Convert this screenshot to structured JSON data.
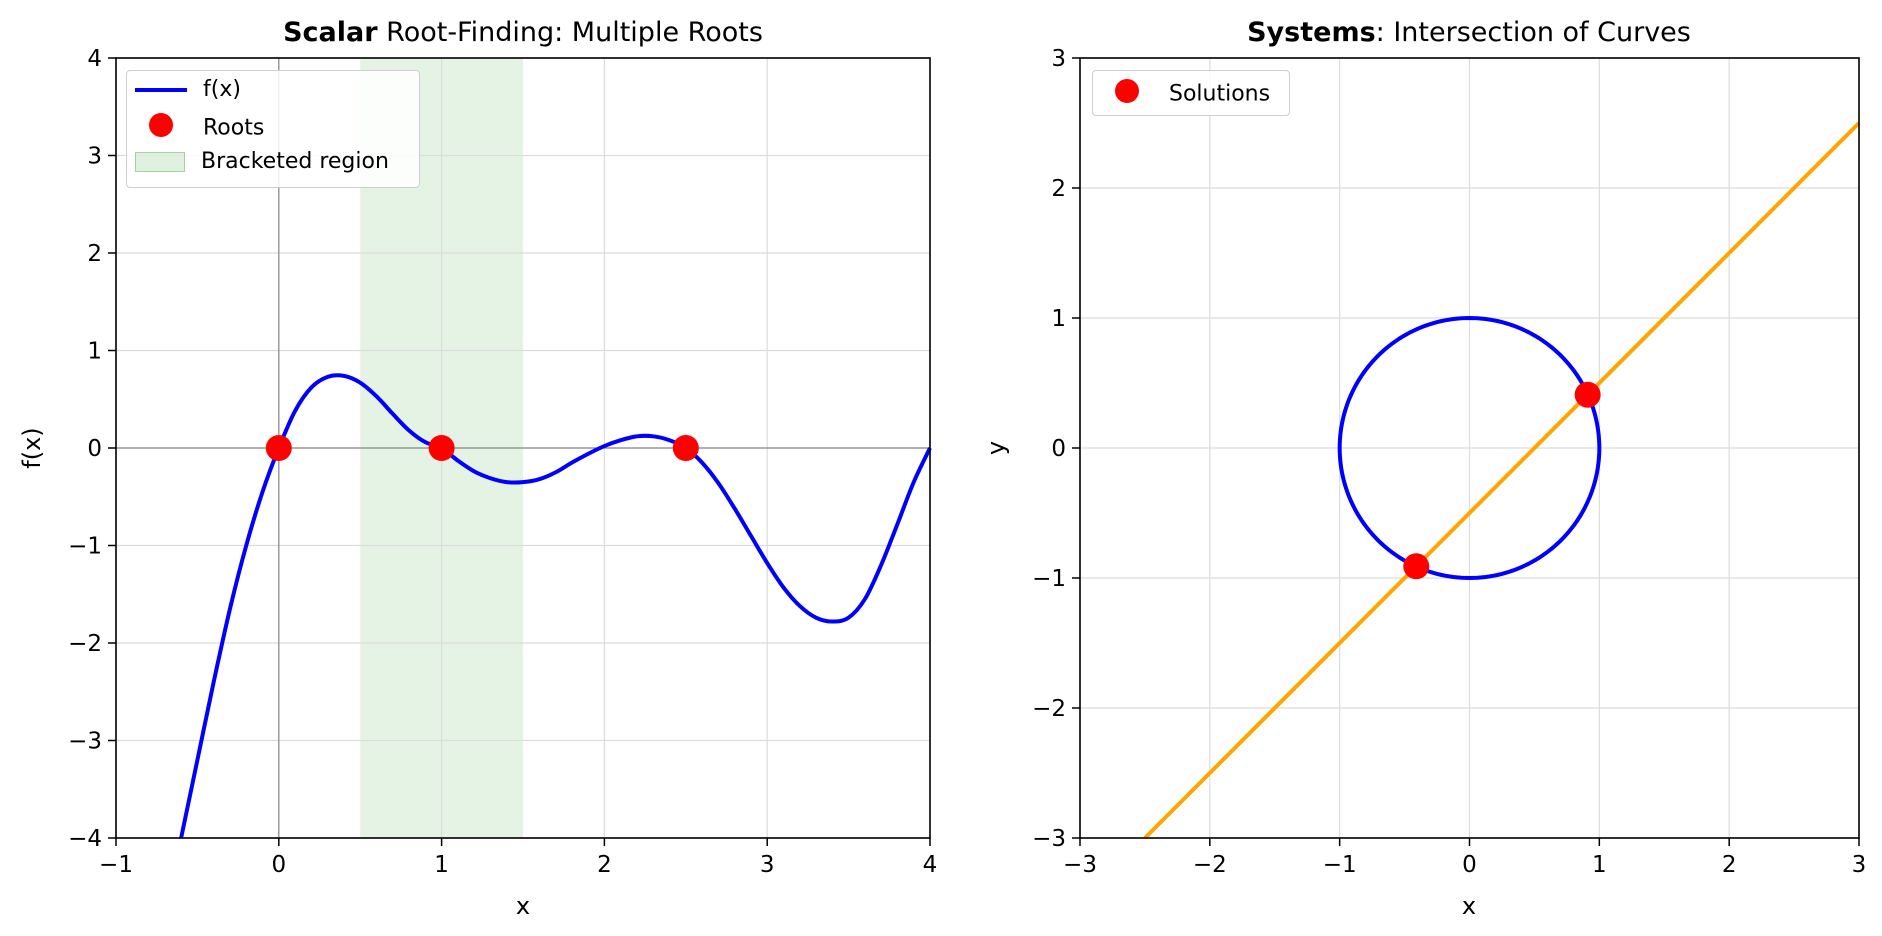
{
  "chart_data": [
    {
      "type": "line",
      "title_bold": "Scalar",
      "title_rest": " Root-Finding: Multiple Roots",
      "xlabel": "x",
      "ylabel": "f(x)",
      "xlim": [
        -1,
        4
      ],
      "ylim": [
        -4,
        4
      ],
      "xticks": [
        -1,
        0,
        1,
        2,
        3,
        4
      ],
      "yticks": [
        -4,
        -3,
        -2,
        -1,
        0,
        1,
        2,
        3,
        4
      ],
      "grid": true,
      "legend_position": "top-left",
      "reference_lines": {
        "x": 0,
        "y": 0
      },
      "series": [
        {
          "name": "f(x)",
          "color": "#0000ff",
          "x": [
            -0.6,
            -0.5,
            -0.4,
            -0.3,
            -0.2,
            -0.1,
            0.0,
            0.1,
            0.2,
            0.3,
            0.4,
            0.5,
            0.6,
            0.7,
            0.8,
            0.9,
            1.0,
            1.1,
            1.2,
            1.3,
            1.4,
            1.5,
            1.6,
            1.7,
            1.8,
            1.9,
            2.0,
            2.1,
            2.2,
            2.3,
            2.4,
            2.5,
            2.6,
            2.7,
            2.8,
            2.9,
            3.0,
            3.1,
            3.2,
            3.3,
            3.4,
            3.5,
            3.6,
            3.7,
            3.8,
            3.9,
            4.0
          ],
          "y": [
            -4.0,
            -3.2,
            -2.4,
            -1.65,
            -1.0,
            -0.45,
            0.0,
            0.38,
            0.62,
            0.73,
            0.74,
            0.67,
            0.53,
            0.35,
            0.18,
            0.06,
            0.0,
            -0.13,
            -0.24,
            -0.31,
            -0.35,
            -0.35,
            -0.32,
            -0.25,
            -0.15,
            -0.06,
            0.02,
            0.08,
            0.12,
            0.12,
            0.08,
            0.0,
            -0.15,
            -0.36,
            -0.62,
            -0.9,
            -1.18,
            -1.43,
            -1.62,
            -1.74,
            -1.78,
            -1.74,
            -1.55,
            -1.2,
            -0.78,
            -0.35,
            0.0
          ]
        },
        {
          "name": "Roots",
          "color": "#ff0000",
          "marker": "circle",
          "x": [
            0,
            1,
            2.5
          ],
          "y": [
            0,
            0,
            0
          ]
        }
      ],
      "shaded_regions": [
        {
          "name": "Bracketed region",
          "x_range": [
            0.5,
            1.5
          ],
          "color": "#2ca02c",
          "opacity": 0.12
        }
      ]
    },
    {
      "type": "line",
      "title_bold": "Systems",
      "title_rest": ": Intersection of Curves",
      "xlabel": "x",
      "ylabel": "y",
      "xlim": [
        -3,
        3
      ],
      "ylim": [
        -3,
        3
      ],
      "xticks": [
        -3,
        -2,
        -1,
        0,
        1,
        2,
        3
      ],
      "yticks": [
        -3,
        -2,
        -1,
        0,
        1,
        2,
        3
      ],
      "grid": true,
      "legend_position": "top-left",
      "series": [
        {
          "color": "#0000ff",
          "shape": "circle",
          "center": [
            0,
            0
          ],
          "radius": 1
        },
        {
          "color": "#ffa500",
          "x": [
            -2.5,
            3.0
          ],
          "y": [
            -3.0,
            2.5
          ]
        },
        {
          "name": "Solutions",
          "color": "#ff0000",
          "marker": "circle",
          "x": [
            -0.41,
            0.91
          ],
          "y": [
            -0.91,
            0.41
          ]
        }
      ]
    }
  ]
}
